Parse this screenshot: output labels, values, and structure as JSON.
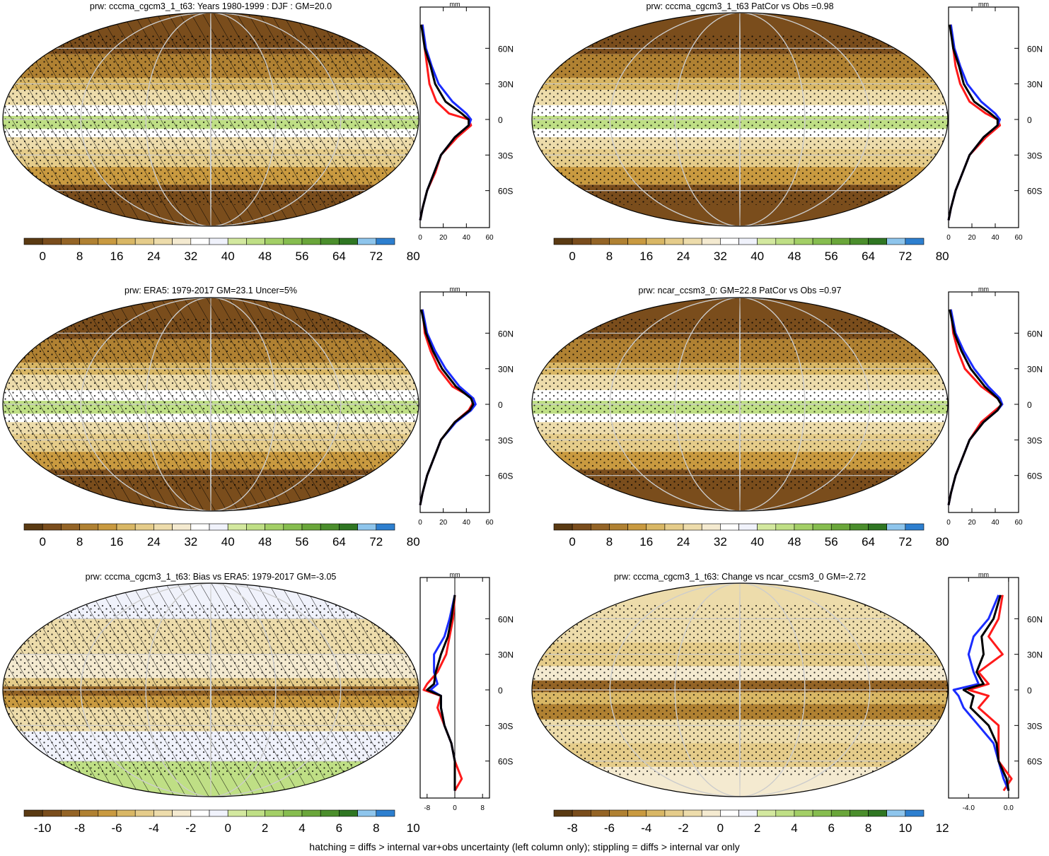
{
  "footer": "hatching = diffs > internal var+obs uncertainty (left column only); stippling = diffs > internal var only",
  "colors": {
    "climatology": [
      "#5a3a12",
      "#7a4d1c",
      "#946426",
      "#b08132",
      "#c99a40",
      "#d9b765",
      "#e5cc8a",
      "#eddcab",
      "#f4ead0",
      "#ffffff",
      "#f0f2fb",
      "#d3e89f",
      "#bfdf85",
      "#a3cf66",
      "#86bd4f",
      "#6aa63a",
      "#4b8e2c",
      "#2f7622",
      "#8ec5ec",
      "#2d7fcf"
    ],
    "diff": [
      "#5a3a12",
      "#7a4d1c",
      "#946426",
      "#b08132",
      "#c99a40",
      "#d9b765",
      "#e5cc8a",
      "#eddcab",
      "#f4ead0",
      "#ffffff",
      "#f0f2fb",
      "#d3e89f",
      "#bfdf85",
      "#a3cf66",
      "#86bd4f",
      "#6aa63a",
      "#4b8e2c",
      "#2f7622",
      "#8ec5ec",
      "#2d7fcf"
    ],
    "ocean_shading": "#e4d29a",
    "line_red": "#ff1a1a",
    "line_blue": "#1a2cff",
    "line_black": "#000000"
  },
  "panels": [
    {
      "id": "top-left",
      "title": "prw: cccma_cgcm3_1_t63: Years 1980-1999 : DJF : GM=20.0",
      "colorbar_labels": [
        "0",
        "8",
        "16",
        "24",
        "32",
        "40",
        "48",
        "56",
        "64",
        "72",
        "80"
      ],
      "hatched": true,
      "stippled": true,
      "profile": {
        "unit": "mm",
        "x_ticks": [
          "0",
          "20",
          "40",
          "60"
        ],
        "x_range": [
          0,
          60
        ],
        "lat_ticks": [
          "60N",
          "30N",
          "0",
          "30S",
          "60S"
        ]
      }
    },
    {
      "id": "top-right",
      "title": "prw: cccma_cgcm3_1_t63 PatCor vs Obs =0.98",
      "colorbar_labels": [
        "0",
        "8",
        "16",
        "24",
        "32",
        "40",
        "48",
        "56",
        "64",
        "72",
        "80"
      ],
      "hatched": false,
      "stippled": true,
      "profile": {
        "unit": "mm",
        "x_ticks": [
          "0",
          "20",
          "40",
          "60"
        ],
        "x_range": [
          0,
          60
        ],
        "lat_ticks": [
          "60N",
          "30N",
          "0",
          "30S",
          "60S"
        ]
      }
    },
    {
      "id": "mid-left",
      "title": "prw: ERA5: 1979-2017 GM=23.1 Uncer=5%",
      "colorbar_labels": [
        "0",
        "8",
        "16",
        "24",
        "32",
        "40",
        "48",
        "56",
        "64",
        "72",
        "80"
      ],
      "hatched": true,
      "stippled": true,
      "profile": {
        "unit": "mm",
        "x_ticks": [
          "0",
          "20",
          "40",
          "60"
        ],
        "x_range": [
          0,
          60
        ],
        "lat_ticks": [
          "60N",
          "30N",
          "0",
          "30S",
          "60S"
        ]
      }
    },
    {
      "id": "mid-right",
      "title": "prw: ncar_ccsm3_0: GM=22.8 PatCor vs Obs =0.97",
      "colorbar_labels": [
        "0",
        "8",
        "16",
        "24",
        "32",
        "40",
        "48",
        "56",
        "64",
        "72",
        "80"
      ],
      "hatched": false,
      "stippled": true,
      "profile": {
        "unit": "mm",
        "x_ticks": [
          "0",
          "20",
          "40",
          "60"
        ],
        "x_range": [
          0,
          60
        ],
        "lat_ticks": [
          "60N",
          "30N",
          "0",
          "30S",
          "60S"
        ]
      }
    },
    {
      "id": "bottom-left",
      "title": "prw: cccma_cgcm3_1_t63: Bias vs ERA5: 1979-2017 GM=-3.05",
      "colorbar_labels": [
        "-10",
        "-8",
        "-6",
        "-4",
        "-2",
        "0",
        "2",
        "4",
        "6",
        "8",
        "10"
      ],
      "hatched": true,
      "stippled": true,
      "profile": {
        "unit": "mm",
        "x_ticks": [
          "-8",
          "0",
          "8"
        ],
        "x_range": [
          -10,
          10
        ],
        "lat_ticks": [
          "60N",
          "30N",
          "0",
          "30S",
          "60S"
        ]
      }
    },
    {
      "id": "bottom-right",
      "title": "prw: cccma_cgcm3_1_t63: Change vs ncar_ccsm3_0 GM=-2.72",
      "colorbar_labels": [
        "-8",
        "-6",
        "-4",
        "-2",
        "0",
        "2",
        "4",
        "6",
        "8",
        "10",
        "12"
      ],
      "hatched": false,
      "stippled": true,
      "profile": {
        "unit": "mm",
        "x_ticks": [
          "-4.0",
          "0.0"
        ],
        "x_range": [
          -6,
          1
        ],
        "lat_ticks": [
          "60N",
          "30N",
          "0",
          "30S",
          "60S"
        ]
      }
    }
  ],
  "chart_data": [
    {
      "type": "line",
      "title": "prw: cccma_cgcm3_1_t63: Years 1980-1999 : DJF : GM=20.0",
      "xlabel": "mm",
      "xlim": [
        0,
        60
      ],
      "y": [
        80,
        60,
        45,
        30,
        15,
        5,
        0,
        -5,
        -15,
        -30,
        -45,
        -60,
        -75,
        -85
      ],
      "series": [
        {
          "values": [
            2,
            4,
            6,
            8,
            14,
            25,
            42,
            44,
            32,
            18,
            13,
            6,
            2,
            0
          ]
        },
        {
          "values": [
            2,
            5,
            10,
            16,
            28,
            40,
            44,
            42,
            30,
            18,
            12,
            6,
            2,
            0
          ]
        },
        {
          "values": [
            1,
            4,
            9,
            13,
            22,
            36,
            42,
            42,
            30,
            18,
            12,
            6,
            2,
            0
          ]
        }
      ]
    },
    {
      "type": "line",
      "title": "prw: cccma_cgcm3_1_t63 PatCor vs Obs =0.98",
      "xlabel": "mm",
      "xlim": [
        0,
        60
      ],
      "y": [
        80,
        60,
        45,
        30,
        15,
        5,
        0,
        -5,
        -15,
        -30,
        -45,
        -60,
        -75,
        -85
      ],
      "series": [
        {
          "values": [
            2,
            4,
            6,
            10,
            18,
            32,
            42,
            44,
            32,
            18,
            12,
            6,
            2,
            0
          ]
        },
        {
          "values": [
            2,
            5,
            10,
            16,
            28,
            40,
            44,
            42,
            30,
            18,
            12,
            6,
            2,
            0
          ]
        },
        {
          "values": [
            1,
            4,
            9,
            13,
            22,
            36,
            42,
            42,
            30,
            18,
            12,
            6,
            2,
            0
          ]
        }
      ]
    },
    {
      "type": "line",
      "title": "prw: ERA5: 1979-2017 GM=23.1 Uncer=5%",
      "xlabel": "mm",
      "xlim": [
        0,
        60
      ],
      "y": [
        80,
        60,
        45,
        30,
        15,
        5,
        0,
        -5,
        -15,
        -30,
        -45,
        -60,
        -75,
        -85
      ],
      "series": [
        {
          "values": [
            2,
            4,
            9,
            16,
            28,
            46,
            45,
            42,
            30,
            18,
            12,
            6,
            2,
            0
          ]
        },
        {
          "values": [
            2,
            6,
            13,
            22,
            34,
            46,
            48,
            44,
            31,
            18,
            12,
            6,
            2,
            0
          ]
        },
        {
          "values": [
            1,
            5,
            11,
            19,
            31,
            44,
            46,
            43,
            30,
            18,
            12,
            6,
            2,
            0
          ]
        }
      ]
    },
    {
      "type": "line",
      "title": "prw: ncar_ccsm3_0: GM=22.8 PatCor vs Obs =0.97",
      "xlabel": "mm",
      "xlim": [
        0,
        60
      ],
      "y": [
        80,
        60,
        45,
        30,
        15,
        5,
        0,
        -5,
        -15,
        -30,
        -45,
        -60,
        -75,
        -85
      ],
      "series": [
        {
          "values": [
            2,
            4,
            8,
            14,
            28,
            42,
            46,
            40,
            28,
            18,
            12,
            6,
            2,
            0
          ]
        },
        {
          "values": [
            2,
            6,
            13,
            22,
            34,
            44,
            46,
            42,
            30,
            18,
            12,
            6,
            2,
            0
          ]
        },
        {
          "values": [
            1,
            5,
            11,
            19,
            31,
            42,
            45,
            42,
            30,
            18,
            12,
            6,
            2,
            0
          ]
        }
      ]
    },
    {
      "type": "line",
      "title": "prw: cccma_cgcm3_1_t63: Bias vs ERA5: 1979-2017 GM=-3.05",
      "xlabel": "mm",
      "xlim": [
        -10,
        10
      ],
      "y": [
        80,
        60,
        45,
        30,
        15,
        5,
        0,
        -5,
        -15,
        -30,
        -45,
        -60,
        -75,
        -85
      ],
      "series": [
        {
          "values": [
            0,
            -0.5,
            -1.5,
            -2.5,
            -5,
            -8,
            -9,
            -4,
            -5,
            -3,
            -1,
            0,
            2,
            0
          ]
        },
        {
          "values": [
            0,
            -1.5,
            -3,
            -6,
            -6,
            -5,
            -7,
            -4,
            -4,
            -3,
            -1,
            0,
            0,
            0
          ]
        },
        {
          "values": [
            0,
            -1.0,
            -2,
            -4,
            -5.5,
            -6,
            -8,
            -4,
            -4,
            -3,
            -1,
            0,
            0,
            0
          ]
        }
      ]
    },
    {
      "type": "line",
      "title": "prw: cccma_cgcm3_1_t63: Change vs ncar_ccsm3_0 GM=-2.72",
      "xlabel": "mm",
      "xlim": [
        -6,
        1
      ],
      "y": [
        80,
        60,
        45,
        30,
        15,
        5,
        0,
        -5,
        -15,
        -30,
        -45,
        -60,
        -75,
        -85
      ],
      "series": [
        {
          "values": [
            -0.6,
            -1.0,
            -2.0,
            -0.6,
            -3.0,
            -2.0,
            -4.0,
            -2.0,
            -3.0,
            -1.0,
            -1.0,
            -1.0,
            0.3,
            -0.5
          ]
        },
        {
          "values": [
            -1.0,
            -2.0,
            -3.5,
            -4.0,
            -3.5,
            -3.0,
            -5.5,
            -5.0,
            -4.5,
            -3.0,
            -1.5,
            -1.0,
            -0.5,
            0
          ]
        },
        {
          "values": [
            -0.8,
            -1.5,
            -2.7,
            -2.5,
            -3.2,
            -2.5,
            -4.5,
            -3.5,
            -3.8,
            -2.0,
            -1.2,
            -1.0,
            -0.2,
            0
          ]
        }
      ]
    }
  ]
}
